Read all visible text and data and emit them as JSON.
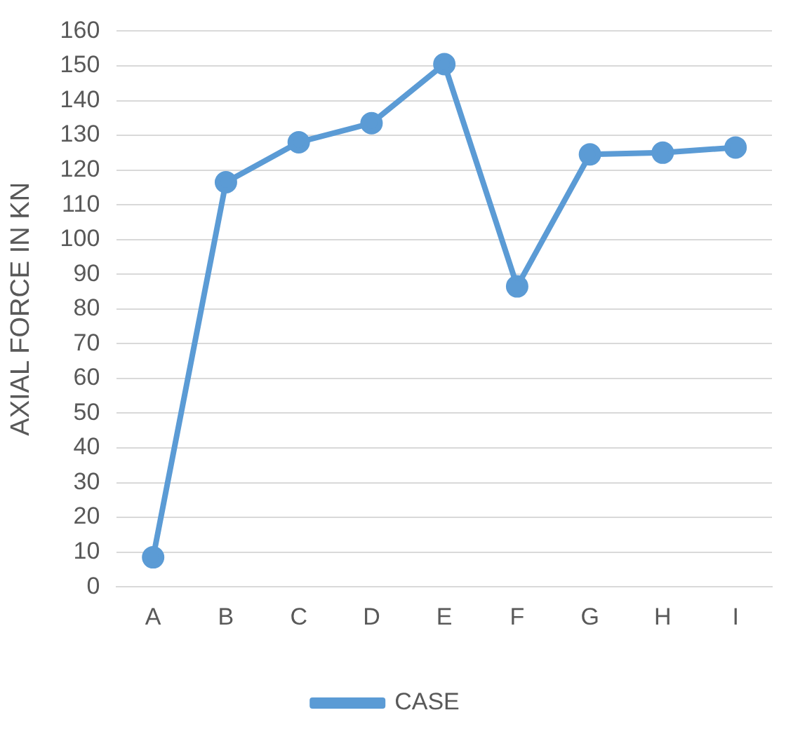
{
  "chart_data": {
    "type": "line",
    "ylabel": "AXIAL FORCE IN KN",
    "categories": [
      "A",
      "B",
      "C",
      "D",
      "E",
      "F",
      "G",
      "H",
      "I"
    ],
    "series": [
      {
        "name": "CASE",
        "color": "#5b9bd5",
        "values": [
          8.5,
          116.5,
          128,
          133.5,
          150.5,
          86.5,
          124.5,
          125,
          126.5
        ]
      }
    ],
    "ylim": [
      0,
      160
    ],
    "yticks": [
      0,
      10,
      20,
      30,
      40,
      50,
      60,
      70,
      80,
      90,
      100,
      110,
      120,
      130,
      140,
      150,
      160
    ],
    "grid": "y",
    "legend": "bottom",
    "marker": "circle",
    "line_style": "solid"
  }
}
